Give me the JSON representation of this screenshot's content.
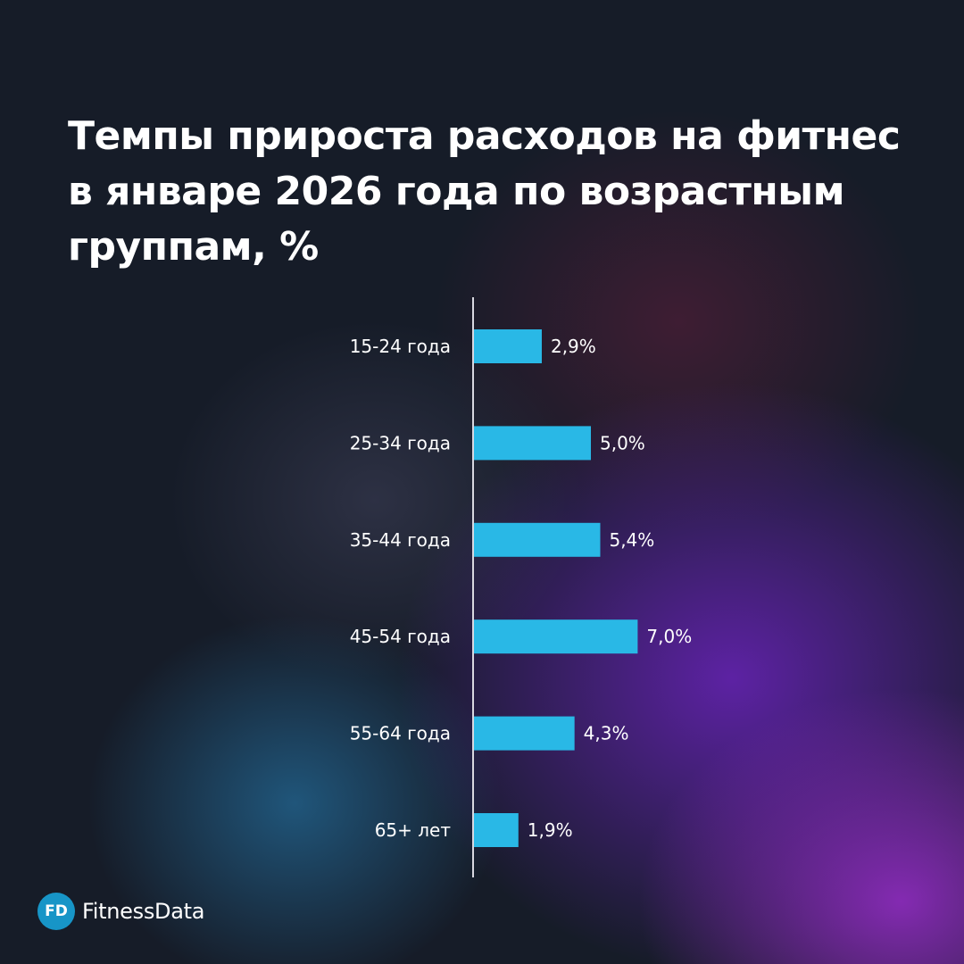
{
  "colors": {
    "bar": "#29b8e6",
    "axis": "#d8d8e0",
    "text": "#ffffff",
    "logo_circle": "#1795c7"
  },
  "chart_data": {
    "type": "bar",
    "orientation": "horizontal",
    "title": "Темпы прироста расходов на фитнес в январе 2026 года по возрастным группам, %",
    "categories": [
      "15-24 года",
      "25-34 года",
      "35-44 года",
      "45-54 года",
      "55-64 года",
      "65+ лет"
    ],
    "values": [
      2.9,
      5.0,
      5.4,
      7.0,
      4.3,
      1.9
    ],
    "value_labels": [
      "2,9%",
      "5,0%",
      "5,4%",
      "7,0%",
      "4,3%",
      "1,9%"
    ],
    "xlabel": "",
    "ylabel": "",
    "xlim": [
      0,
      7
    ],
    "grid": false,
    "legend": "none"
  },
  "logo": {
    "mark": "FD",
    "name": "FitnessData"
  }
}
